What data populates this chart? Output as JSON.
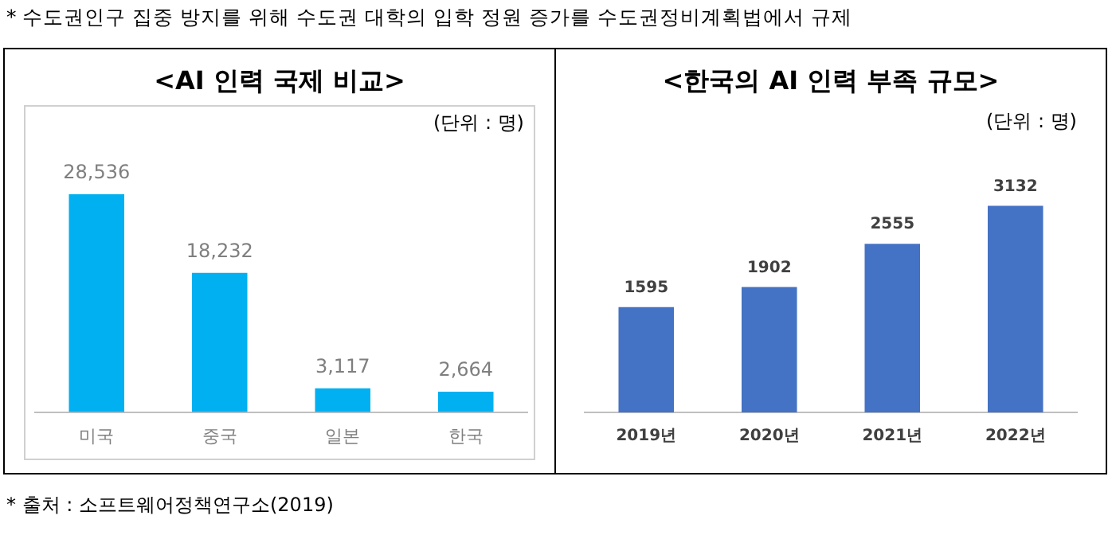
{
  "chart_data": [
    {
      "type": "bar",
      "title": "<AI 인력 국제 비교>",
      "categories": [
        "미국",
        "중국",
        "일본",
        "한국"
      ],
      "values": [
        28536,
        18232,
        3117,
        2664
      ],
      "color": "#00b0f0",
      "value_labels": [
        "28,536",
        "18,232",
        "3,117",
        "2,664"
      ],
      "grid": false,
      "legend": false,
      "annotations": [
        "(단위 : 명)",
        "* 수도권인구 집중 방지를 위해 수도권 대학의 입학 정원 증가를 수도권정비계획법에서 규제",
        "* 출처 : 소프트웨어정책연구소(2019)"
      ]
    },
    {
      "type": "bar",
      "title": "<한국의 AI 인력 부족 규모>",
      "categories": [
        "2019년",
        "2020년",
        "2021년",
        "2022년"
      ],
      "values": [
        1595,
        1902,
        2555,
        3132
      ],
      "color": "#4472c4",
      "data_labels": true,
      "grid": false,
      "legend": false,
      "annotations": [
        "(단위 : 명)"
      ]
    }
  ]
}
